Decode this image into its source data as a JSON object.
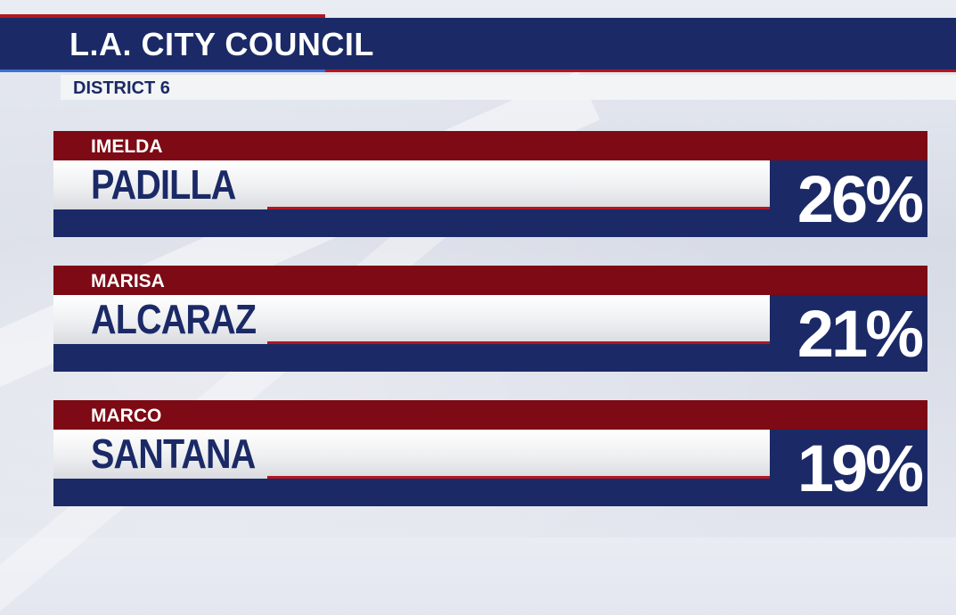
{
  "header": {
    "title": "L.A. CITY COUNCIL",
    "subtitle": "DISTRICT 6"
  },
  "candidates": [
    {
      "first_name": "IMELDA",
      "last_name": "PADILLA",
      "percent": "26%"
    },
    {
      "first_name": "MARISA",
      "last_name": "ALCARAZ",
      "percent": "21%"
    },
    {
      "first_name": "MARCO",
      "last_name": "SANTANA",
      "percent": "19%"
    }
  ],
  "colors": {
    "navy": "#1b2a66",
    "red": "#7d0a14",
    "accent_red": "#b3161f"
  }
}
